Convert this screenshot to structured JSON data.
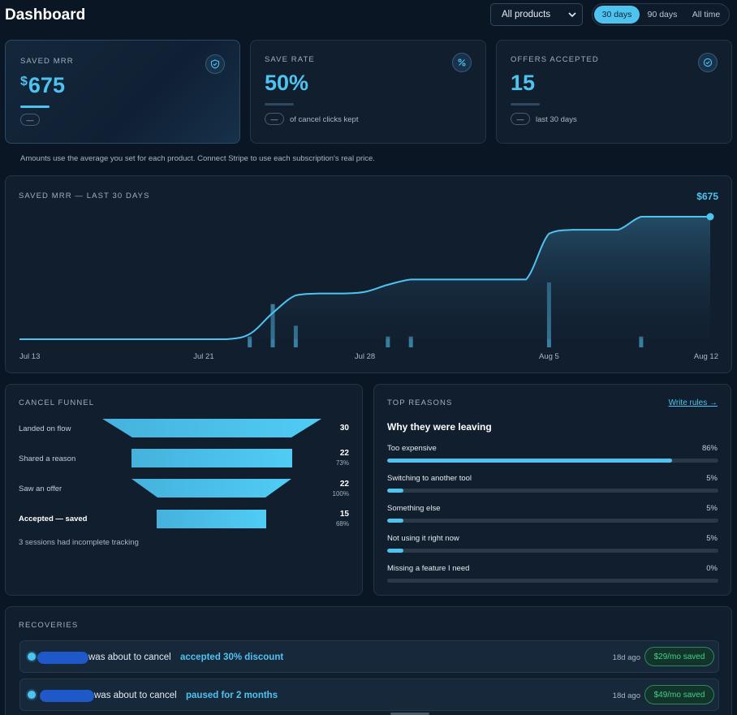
{
  "header": {
    "title": "Dashboard",
    "product_select": "All products",
    "ranges": [
      {
        "label": "30 days",
        "active": true
      },
      {
        "label": "90 days",
        "active": false
      },
      {
        "label": "All time",
        "active": false
      }
    ]
  },
  "stats": [
    {
      "label": "SAVED MRR",
      "currency": "$",
      "value": "675",
      "pill": "—",
      "sub": "",
      "icon": "shield-check-icon"
    },
    {
      "label": "SAVE RATE",
      "currency": "",
      "value": "50%",
      "pill": "—",
      "sub": "of cancel clicks kept",
      "icon": "percent-icon"
    },
    {
      "label": "OFFERS ACCEPTED",
      "currency": "",
      "value": "15",
      "pill": "—",
      "sub": "last 30 days",
      "icon": "check-circle-icon"
    }
  ],
  "note": "Amounts use the average you set for each product. Connect Stripe to use each subscription's real price.",
  "chart_data": {
    "type": "line",
    "title": "SAVED MRR — LAST 30 DAYS",
    "total_label": "$675",
    "x_labels": [
      "Jul 13",
      "Jul 21",
      "Jul 28",
      "Aug 5",
      "Aug 12"
    ],
    "days": [
      "Jul 13",
      "Jul 14",
      "Jul 15",
      "Jul 16",
      "Jul 17",
      "Jul 18",
      "Jul 19",
      "Jul 20",
      "Jul 21",
      "Jul 22",
      "Jul 23",
      "Jul 24",
      "Jul 25",
      "Jul 26",
      "Jul 27",
      "Jul 28",
      "Jul 29",
      "Jul 30",
      "Jul 31",
      "Aug 1",
      "Aug 2",
      "Aug 3",
      "Aug 4",
      "Aug 5",
      "Aug 6",
      "Aug 7",
      "Aug 8",
      "Aug 9",
      "Aug 10",
      "Aug 11",
      "Aug 12"
    ],
    "series": [
      {
        "values": [
          0,
          0,
          0,
          0,
          0,
          0,
          0,
          0,
          0,
          0,
          29,
          145,
          242,
          252,
          252,
          261,
          300,
          329,
          329,
          329,
          329,
          329,
          329,
          582,
          603,
          603,
          603,
          675,
          675,
          675,
          675
        ]
      },
      {
        "values": [
          0,
          0,
          0,
          0,
          0,
          0,
          0,
          0,
          0,
          0,
          1,
          4,
          2,
          0,
          0,
          0,
          1,
          1,
          0,
          0,
          0,
          0,
          0,
          6,
          0,
          0,
          0,
          1,
          0,
          0,
          0
        ]
      }
    ],
    "ylim": [
      0,
      675
    ]
  },
  "funnel": {
    "title": "CANCEL FUNNEL",
    "steps": [
      {
        "label": "Landed on flow",
        "count": "30",
        "pct": ""
      },
      {
        "label": "Shared a reason",
        "count": "22",
        "pct": "73%"
      },
      {
        "label": "Saw an offer",
        "count": "22",
        "pct": "100%"
      },
      {
        "label": "Accepted — saved",
        "count": "15",
        "pct": "68%"
      }
    ],
    "note": "3 sessions had incomplete tracking"
  },
  "reasons": {
    "title": "TOP REASONS",
    "link": "Write rules →",
    "heading": "Why they were leaving",
    "items": [
      {
        "label": "Too expensive",
        "pct_label": "86%",
        "value": 86
      },
      {
        "label": "Switching to another tool",
        "pct_label": "5%",
        "value": 5
      },
      {
        "label": "Something else",
        "pct_label": "5%",
        "value": 5
      },
      {
        "label": "Not using it right now",
        "pct_label": "5%",
        "value": 5
      },
      {
        "label": "Missing a feature I need",
        "pct_label": "0%",
        "value": 0
      }
    ]
  },
  "recoveries": {
    "title": "RECOVERIES",
    "rows": [
      {
        "text": "was about to cancel",
        "action": "accepted 30% discount",
        "time": "18d ago",
        "badge": "$29/mo saved"
      },
      {
        "text": "was about to cancel",
        "action": "paused for 2 months",
        "time": "18d ago",
        "badge": "$49/mo saved"
      }
    ]
  },
  "colors": {
    "accent": "#4fc3f0",
    "success": "#43d18a",
    "background": "#0b1624"
  }
}
